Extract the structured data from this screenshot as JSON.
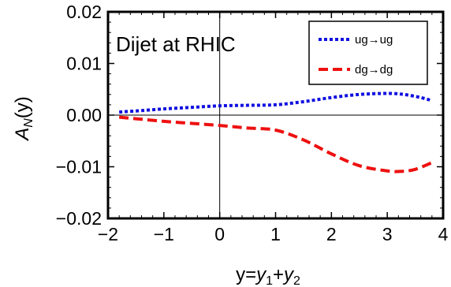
{
  "chart_data": {
    "type": "line",
    "title": "",
    "annotation": "Dijet at RHIC",
    "xlabel": {
      "base": "y=",
      "v1": "y",
      "s1": "1",
      "plus": "+",
      "v2": "y",
      "s2": "2"
    },
    "ylabel": {
      "base": "A",
      "sub": "N",
      "rest": "(y)"
    },
    "xlim": [
      -2,
      4
    ],
    "ylim": [
      -0.02,
      0.02
    ],
    "xticks": [
      -2,
      -1,
      0,
      1,
      2,
      3,
      4
    ],
    "xtick_labels": [
      "−2",
      "−1",
      "0",
      "1",
      "2",
      "3",
      "4"
    ],
    "yticks": [
      -0.02,
      -0.01,
      0,
      0.01,
      0.02
    ],
    "ytick_labels": [
      "−0.02",
      "−0.01",
      "0.00",
      "0.01",
      "0.02"
    ],
    "grid": false,
    "legend_position": "top-right",
    "series": [
      {
        "name": "ug→ug",
        "color": "#1010e0",
        "style": "dotted",
        "x": [
          -1.8,
          -1.5,
          -1.0,
          -0.5,
          0.0,
          0.5,
          1.0,
          1.5,
          2.0,
          2.5,
          3.0,
          3.3,
          3.6,
          3.8
        ],
        "y": [
          0.0006,
          0.0008,
          0.0012,
          0.0015,
          0.0018,
          0.0019,
          0.002,
          0.0026,
          0.0034,
          0.004,
          0.0042,
          0.004,
          0.0034,
          0.0028
        ]
      },
      {
        "name": "dg→dg",
        "color": "#ee1010",
        "style": "dashed",
        "x": [
          -1.8,
          -1.5,
          -1.0,
          -0.5,
          0.0,
          0.5,
          1.0,
          1.5,
          2.0,
          2.5,
          3.0,
          3.25,
          3.5,
          3.8
        ],
        "y": [
          -0.0004,
          -0.0007,
          -0.0012,
          -0.0016,
          -0.002,
          -0.0025,
          -0.0029,
          -0.0048,
          -0.0075,
          -0.0098,
          -0.0108,
          -0.0109,
          -0.0105,
          -0.0092
        ]
      }
    ]
  }
}
